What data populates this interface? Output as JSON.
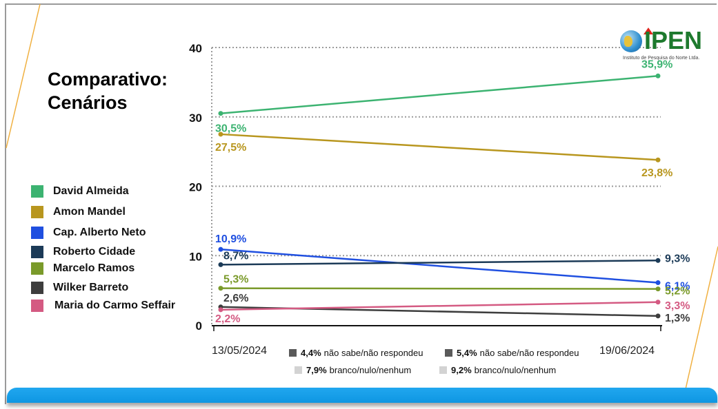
{
  "slide": {
    "title_line1": "Comparativo:",
    "title_line2": "Cenários",
    "logo": {
      "name": "IPEN",
      "subtitle": "Instituto de Pesquisa do Norte Ltda."
    },
    "footnotes": [
      {
        "value": "4,4%",
        "label": "não sabe/não respondeu",
        "color": "#5a5a5a"
      },
      {
        "value": "5,4%",
        "label": "não sabe/não respondeu",
        "color": "#5a5a5a"
      },
      {
        "value": "7,9%",
        "label": "branco/nulo/nenhum",
        "color": "#d3d3d3"
      },
      {
        "value": "9,2%",
        "label": "branco/nulo/nenhum",
        "color": "#d3d3d3"
      }
    ],
    "accent_line_color": "#f0b040",
    "bottom_bar_color": "#1aa3ec"
  },
  "chart_data": {
    "type": "line",
    "title": "Comparativo: Cenários",
    "x": [
      "13/05/2024",
      "19/06/2024"
    ],
    "xlabel": "",
    "ylabel": "",
    "ylim": [
      0,
      40
    ],
    "yticks": [
      "0",
      "10",
      "20",
      "30",
      "40"
    ],
    "grid": "dotted horizontal at 10, 30, 40",
    "legend_placement": "left",
    "series": [
      {
        "name": "David Almeida",
        "color": "#3cb371",
        "values": [
          30.5,
          35.9
        ],
        "labels": [
          "30,5%",
          "35,9%"
        ]
      },
      {
        "name": "Amon Mandel",
        "color": "#b8961e",
        "values": [
          27.5,
          23.8
        ],
        "labels": [
          "27,5%",
          "23,8%"
        ]
      },
      {
        "name": "Cap. Alberto Neto",
        "color": "#1f4fe0",
        "values": [
          10.9,
          6.1
        ],
        "labels": [
          "10,9%",
          "6,1%"
        ]
      },
      {
        "name": "Roberto Cidade",
        "color": "#1b3a57",
        "values": [
          8.7,
          9.3
        ],
        "labels": [
          "8,7%",
          "9,3%"
        ]
      },
      {
        "name": "Marcelo Ramos",
        "color": "#7a9a2a",
        "values": [
          5.3,
          5.2
        ],
        "labels": [
          "5,3%",
          "5,2%"
        ]
      },
      {
        "name": "Wilker Barreto",
        "color": "#3d3d3d",
        "values": [
          2.6,
          1.3
        ],
        "labels": [
          "2,6%",
          "1,3%"
        ]
      },
      {
        "name": "Maria do Carmo Seffair",
        "color": "#d45a82",
        "values": [
          2.2,
          3.3
        ],
        "labels": [
          "2,2%",
          "3,3%"
        ]
      }
    ]
  }
}
